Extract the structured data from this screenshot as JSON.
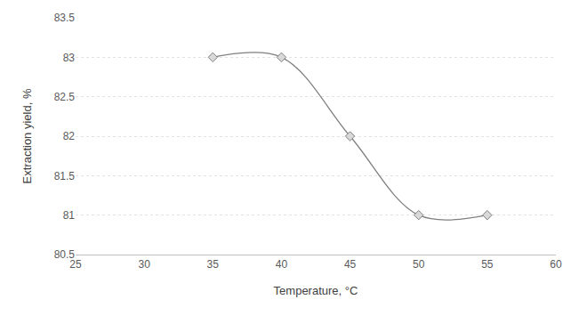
{
  "chart_data": {
    "type": "line",
    "x": [
      35,
      40,
      45,
      50,
      55
    ],
    "values": [
      83,
      83,
      82,
      81,
      81
    ],
    "xlabel": "Temperature, °C",
    "ylabel": "Extraction yield, %",
    "xlim": [
      25,
      60
    ],
    "xticks": [
      25,
      30,
      35,
      40,
      45,
      50,
      55,
      60
    ],
    "ylim": [
      80.5,
      83.5
    ],
    "yticks": [
      80.5,
      81,
      81.5,
      82,
      82.5,
      83,
      83.5
    ],
    "color": "#7f7f7f",
    "marker": "diamond",
    "line_style": "smooth",
    "grid": true
  }
}
